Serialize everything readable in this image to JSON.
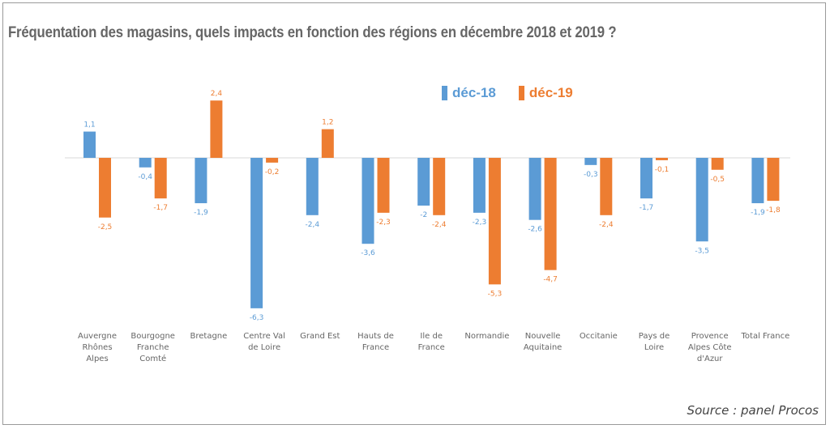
{
  "title": "Fréquentation des magasins, quels impacts en fonction des régions en décembre 2018 et 2019 ?",
  "source": "Source : panel Procos",
  "colors": {
    "dec18": "#5b9bd5",
    "dec19": "#ed7d31"
  },
  "chart_data": {
    "type": "bar",
    "categories": [
      [
        "Auvergne",
        "Rhônes",
        "Alpes"
      ],
      [
        "Bourgogne",
        "Franche",
        "Comté"
      ],
      [
        "Bretagne"
      ],
      [
        "Centre Val",
        "de Loire"
      ],
      [
        "Grand Est"
      ],
      [
        "Hauts de",
        "France"
      ],
      [
        "Ile de",
        "France"
      ],
      [
        "Normandie"
      ],
      [
        "Nouvelle",
        "Aquitaine"
      ],
      [
        "Occitanie"
      ],
      [
        "Pays de",
        "Loire"
      ],
      [
        "Provence",
        "Alpes Côte",
        "d'Azur"
      ],
      [
        "Total France"
      ]
    ],
    "series": [
      {
        "name": "déc-18",
        "values": [
          1.1,
          -0.4,
          -1.9,
          -6.3,
          -2.4,
          -3.6,
          -2,
          -2.3,
          -2.6,
          -0.3,
          -1.7,
          -3.5,
          -1.9
        ],
        "labels": [
          "1,1",
          "-0,4",
          "-1,9",
          "-6,3",
          "-2,4",
          "-3,6",
          "-2",
          "-2,3",
          "-2,6",
          "-0,3",
          "-1,7",
          "-3,5",
          "-1,9"
        ]
      },
      {
        "name": "déc-19",
        "values": [
          -2.5,
          -1.7,
          2.4,
          -0.2,
          1.2,
          -2.3,
          -2.4,
          -5.3,
          -4.7,
          -2.4,
          -0.1,
          -0.5,
          -1.8
        ],
        "labels": [
          "-2,5",
          "-1,7",
          "2,4",
          "-0,2",
          "1,2",
          "-2,3",
          "-2,4",
          "-5,3",
          "-4,7",
          "-2,4",
          "-0,1",
          "-0,5",
          "-1,8"
        ]
      }
    ],
    "legend_position": "top-right",
    "grid": false
  }
}
